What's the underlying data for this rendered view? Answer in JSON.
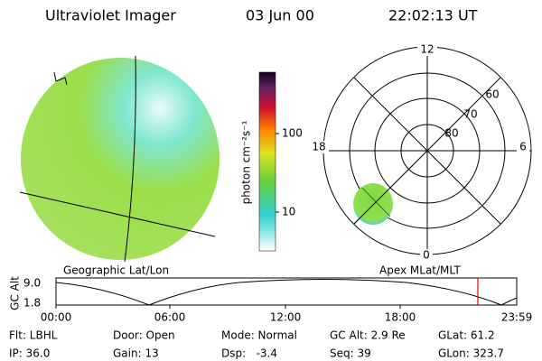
{
  "header": {
    "instrument": "Ultraviolet Imager",
    "date": "03 Jun 00",
    "time": "22:02:13 UT"
  },
  "colorbar": {
    "label": "photon cm⁻²s⁻¹",
    "ticks": [
      "100",
      "10"
    ]
  },
  "polar": {
    "mlt_labels": [
      "12",
      "18",
      "6",
      "0"
    ],
    "lat_labels": [
      "60",
      "70",
      "80"
    ]
  },
  "captions": {
    "left": "Geographic Lat/Lon",
    "right": "Apex MLat/MLT"
  },
  "timeline": {
    "axis_label": "GC Alt",
    "y_labels": [
      "9.0",
      "1.8"
    ],
    "x_labels": [
      "00:00",
      "06:00",
      "12:00",
      "18:00",
      "23:59"
    ]
  },
  "footer": {
    "rows": [
      [
        "Flt: LBHL",
        "Door: Open",
        "Mode: Normal",
        "GC Alt: 2.9 Re",
        "GLat: 61.2"
      ],
      [
        "IP: 36.0",
        "Gain: 13",
        "Dsp:   -3.4",
        "Seq: 39",
        "GLon: 323.7"
      ]
    ]
  }
}
